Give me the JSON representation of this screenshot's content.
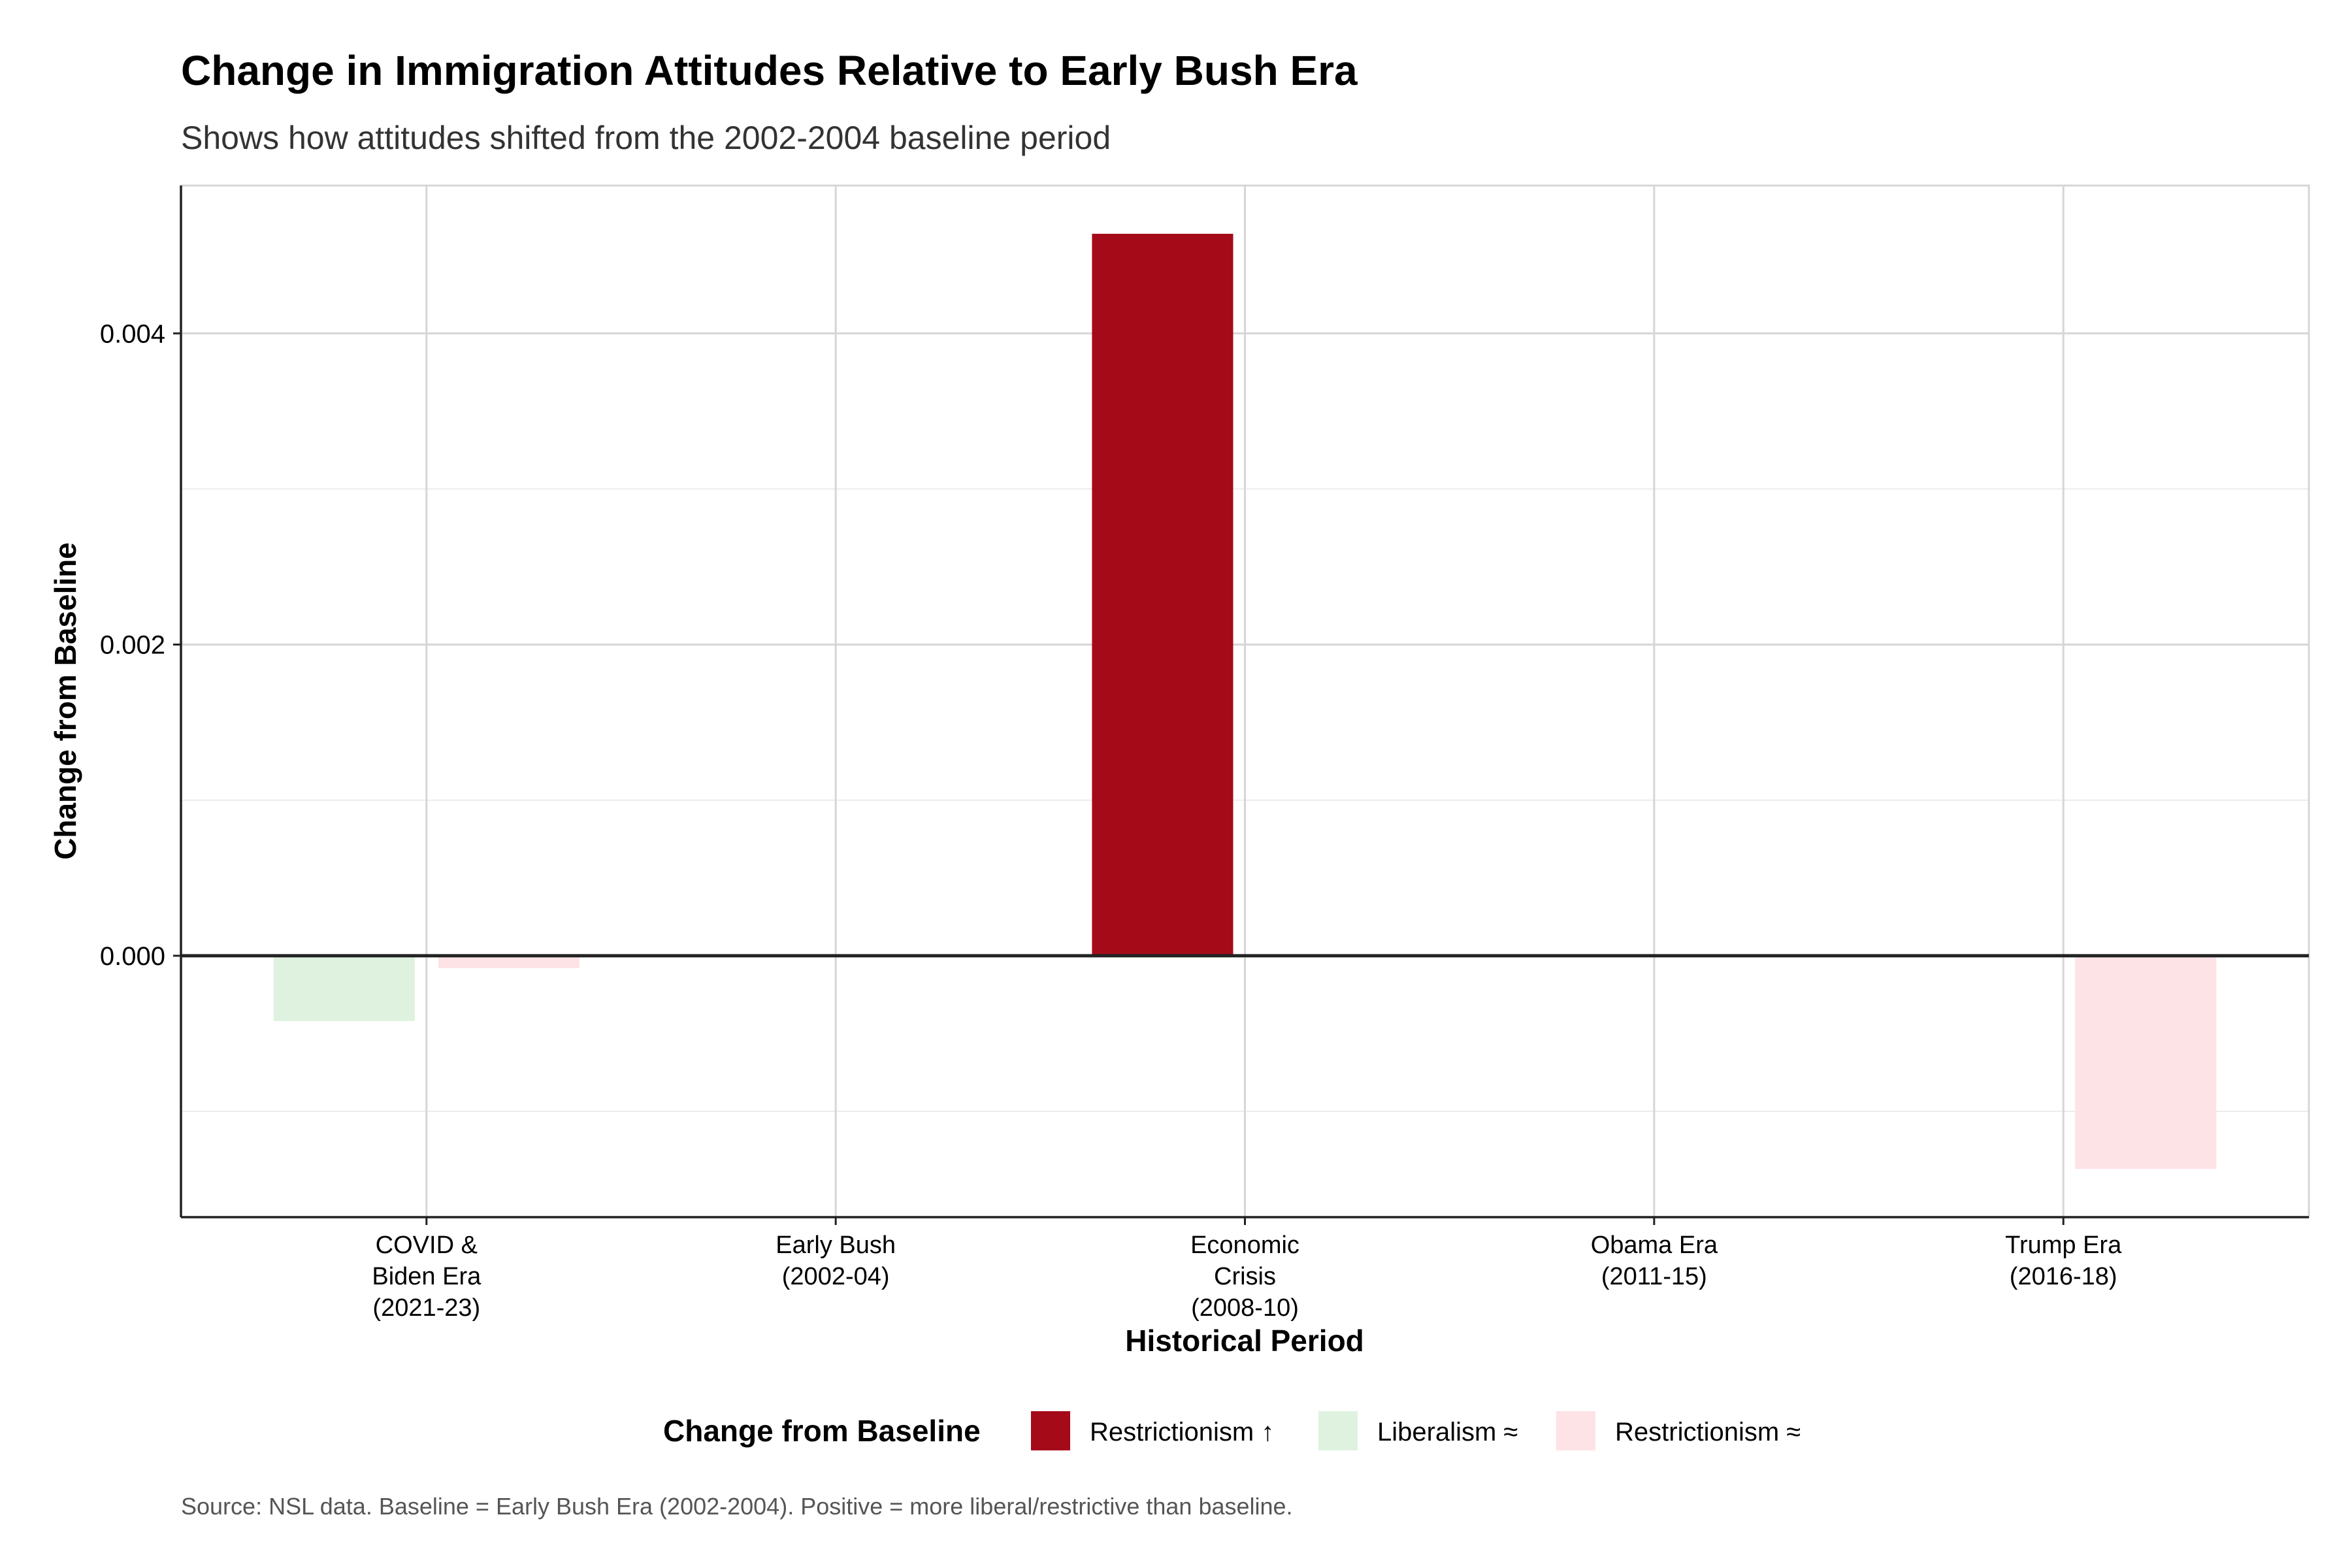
{
  "chart_data": {
    "type": "bar",
    "title": "Change in Immigration Attitudes Relative to Early Bush Era",
    "subtitle": "Shows how attitudes shifted from the 2002-2004 baseline period",
    "xlabel": "Historical Period",
    "ylabel": "Change from Baseline",
    "caption": "Source: NSL data. Baseline = Early Bush Era (2002-2004). Positive = more liberal/restrictive than baseline.",
    "categories": [
      [
        "COVID &",
        "Biden Era",
        "(2021-23)"
      ],
      [
        "Early Bush",
        "(2002-04)"
      ],
      [
        "Economic",
        "Crisis",
        "(2008-10)"
      ],
      [
        "Obama Era",
        "(2011-15)"
      ],
      [
        "Trump Era",
        "(2016-18)"
      ]
    ],
    "ylim": [
      -0.00168,
      0.00495
    ],
    "yticks": [
      0.0,
      0.002,
      0.004
    ],
    "ytick_labels": [
      "0.000",
      "0.002",
      "0.004"
    ],
    "grid": true,
    "legend": {
      "title": "Change from Baseline",
      "position": "bottom",
      "entries": [
        {
          "label": "Restrictionism ↑",
          "color": "#a50a19"
        },
        {
          "label": "Liberalism ≈",
          "color": "#dff2e0"
        },
        {
          "label": "Restrictionism ≈",
          "color": "#fde2e6"
        }
      ]
    },
    "bars": [
      {
        "category_index": 0,
        "dodge": 0,
        "value": -0.00042,
        "color": "#dff2e0"
      },
      {
        "category_index": 0,
        "dodge": 1,
        "value": -8e-05,
        "color": "#fde2e6"
      },
      {
        "category_index": 2,
        "dodge": 0,
        "value": 0.00464,
        "color": "#a50a19"
      },
      {
        "category_index": 4,
        "dodge": 1,
        "value": -0.00137,
        "color": "#fde2e6"
      }
    ]
  }
}
